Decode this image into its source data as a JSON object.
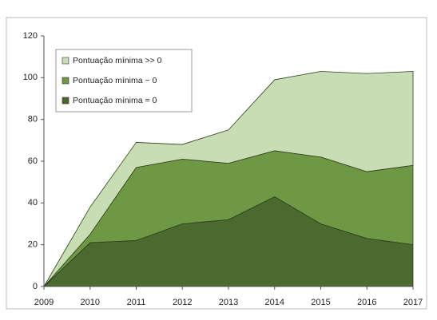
{
  "chart_data": {
    "type": "stacked_area",
    "categories": [
      "2009",
      "2010",
      "2011",
      "2012",
      "2013",
      "2014",
      "2015",
      "2016",
      "2017"
    ],
    "series": [
      {
        "name": "Pontuação mínima = 0",
        "color": "#4b6a2f",
        "values": [
          0,
          21,
          22,
          30,
          32,
          43,
          30,
          23,
          20
        ]
      },
      {
        "name": "Pontuação mínima ~ 0",
        "color": "#6e9844",
        "values": [
          0,
          4,
          35,
          31,
          27,
          22,
          32,
          32,
          38
        ]
      },
      {
        "name": "Pontuação mínima >> 0",
        "color": "#c9ddb4",
        "values": [
          0,
          13,
          12,
          7,
          16,
          34,
          41,
          47,
          45
        ]
      }
    ],
    "ylim": [
      0,
      120
    ],
    "yticks": [
      0,
      20,
      40,
      60,
      80,
      100,
      120
    ],
    "grid": false,
    "legend": "upper left"
  }
}
